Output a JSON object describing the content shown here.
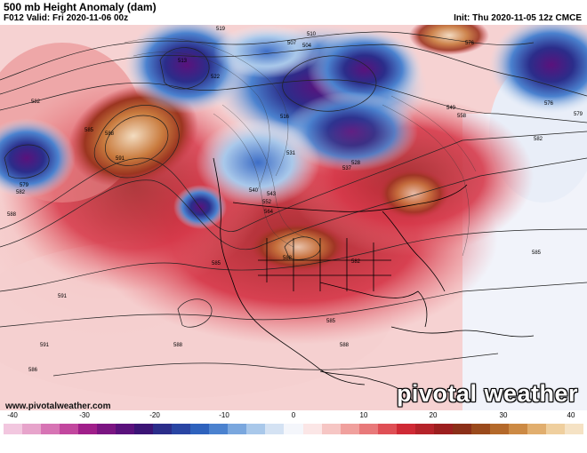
{
  "header": {
    "title": "500 mb Height Anomaly (dam)",
    "valid": "F012 Valid: Fri 2020-11-06 00z",
    "init": "Init: Thu 2020-11-05 12z CMCE"
  },
  "footer": {
    "url": "www.pivotalweather.com",
    "brand": "pivotal weather"
  },
  "colorbar": {
    "ticks": [
      "-40",
      "-30",
      "-20",
      "-10",
      "0",
      "10",
      "20",
      "30",
      "40"
    ],
    "colors": [
      "#f2c7df",
      "#e7a4cb",
      "#d774b4",
      "#c2479e",
      "#a01f8a",
      "#7b1582",
      "#5a117c",
      "#3b1475",
      "#2b2d8a",
      "#2945a3",
      "#2e62bd",
      "#4b82cf",
      "#7aa7de",
      "#a9c8ea",
      "#d4e2f3",
      "#f4f6fb",
      "#fbe6e6",
      "#f6c6c4",
      "#f0a09d",
      "#e8797a",
      "#df4f55",
      "#cf2a35",
      "#b5232a",
      "#9c1f1f",
      "#8b2f18",
      "#9a4a1c",
      "#b4692a",
      "#cc8a44",
      "#e1ae6e",
      "#efcf9e",
      "#f5e2c4"
    ]
  },
  "map_labels": [
    {
      "text": "582"
    },
    {
      "text": "585"
    },
    {
      "text": "588"
    },
    {
      "text": "591"
    },
    {
      "text": "579"
    },
    {
      "text": "582"
    },
    {
      "text": "588"
    },
    {
      "text": "591"
    },
    {
      "text": "519"
    },
    {
      "text": "507"
    },
    {
      "text": "510"
    },
    {
      "text": "504"
    },
    {
      "text": "513"
    },
    {
      "text": "516"
    },
    {
      "text": "522"
    },
    {
      "text": "531"
    },
    {
      "text": "540"
    },
    {
      "text": "543"
    },
    {
      "text": "552"
    },
    {
      "text": "564"
    },
    {
      "text": "576"
    },
    {
      "text": "549"
    },
    {
      "text": "558"
    },
    {
      "text": "576"
    },
    {
      "text": "579"
    },
    {
      "text": "582"
    },
    {
      "text": "585"
    },
    {
      "text": "588"
    },
    {
      "text": "588"
    },
    {
      "text": "585"
    },
    {
      "text": "591"
    },
    {
      "text": "586"
    },
    {
      "text": "588"
    },
    {
      "text": "585"
    },
    {
      "text": "582"
    },
    {
      "text": "528"
    },
    {
      "text": "537"
    }
  ]
}
